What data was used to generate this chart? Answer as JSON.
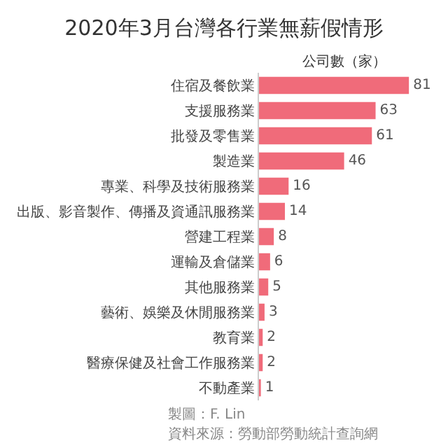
{
  "chart_data": {
    "type": "bar",
    "orientation": "horizontal",
    "title": "2020年3月台灣各行業無薪假情形",
    "subtitle": "公司數（家）",
    "categories": [
      "住宿及餐飲業",
      "支援服務業",
      "批發及零售業",
      "製造業",
      "專業、科學及技術服務業",
      "出版、影音製作、傳播及資通訊服務業",
      "營建工程業",
      "運輸及倉儲業",
      "其他服務業",
      "藝術、娛樂及休閒服務業",
      "教育業",
      "醫療保健及社會工作服務業",
      "不動產業"
    ],
    "values": [
      81,
      63,
      61,
      46,
      16,
      14,
      8,
      6,
      5,
      3,
      2,
      2,
      1
    ],
    "color": "#f06b7a",
    "data_labels": true,
    "annotations": [
      "製圖：F. Lin",
      "資料來源：勞動部勞動統計查詢網"
    ]
  }
}
